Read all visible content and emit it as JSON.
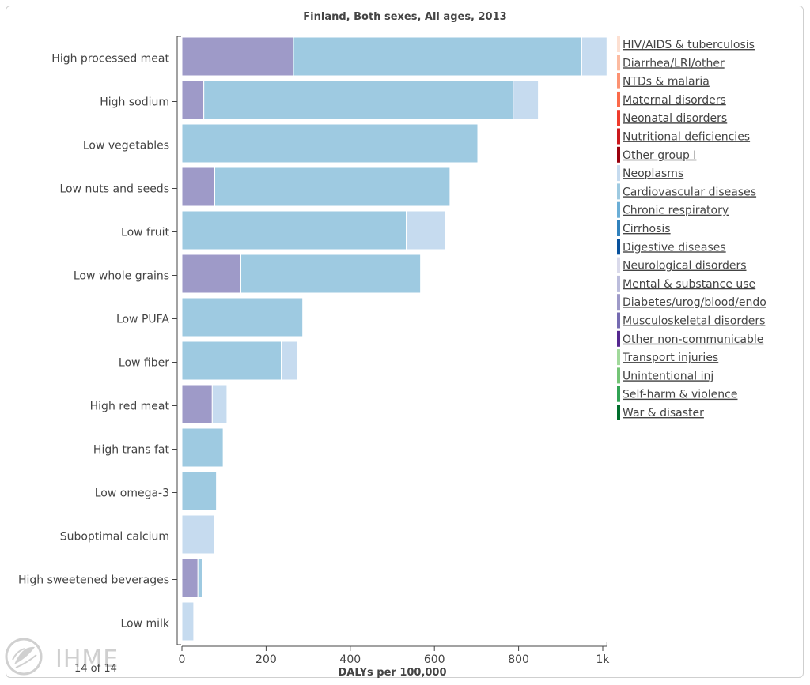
{
  "chart_data": {
    "type": "bar",
    "orientation": "horizontal",
    "stacked": true,
    "title": "Finland, Both sexes, All ages, 2013",
    "xlabel": "DALYs per 100,000",
    "xlim": [
      0,
      1010
    ],
    "x_ticks": [
      "0",
      "200",
      "400",
      "600",
      "800",
      "1k"
    ],
    "x_tick_values": [
      0,
      200,
      400,
      600,
      800,
      1000
    ],
    "categories": [
      "High processed meat",
      "High sodium",
      "Low vegetables",
      "Low nuts and seeds",
      "Low fruit",
      "Low whole grains",
      "Low PUFA",
      "Low fiber",
      "High red meat",
      "High trans fat",
      "Low omega-3",
      "Suboptimal calcium",
      "High sweetened beverages",
      "Low milk"
    ],
    "series": [
      {
        "name": "Diabetes/urog/blood/endo",
        "color": "#9e9ac8",
        "values": [
          265,
          52,
          0,
          78,
          0,
          140,
          0,
          0,
          72,
          0,
          0,
          0,
          38,
          0
        ]
      },
      {
        "name": "Cardiovascular diseases",
        "color": "#9ecae1",
        "values": [
          685,
          735,
          703,
          559,
          533,
          427,
          287,
          236,
          0,
          98,
          82,
          0,
          10,
          0
        ]
      },
      {
        "name": "Neoplasms",
        "color": "#c6dbef",
        "values": [
          60,
          60,
          0,
          0,
          92,
          0,
          0,
          38,
          35,
          0,
          0,
          78,
          0,
          28
        ]
      }
    ],
    "legend_position": "right",
    "legend": [
      {
        "label": "HIV/AIDS & tuberculosis",
        "color": "#fde0d2"
      },
      {
        "label": "Diarrhea/LRI/other",
        "color": "#fcbba1"
      },
      {
        "label": "NTDs & malaria",
        "color": "#fc9272"
      },
      {
        "label": "Maternal disorders",
        "color": "#fb6a4a"
      },
      {
        "label": "Neonatal disorders",
        "color": "#ef3b2c"
      },
      {
        "label": "Nutritional deficiencies",
        "color": "#cb181d"
      },
      {
        "label": "Other group I",
        "color": "#99000d"
      },
      {
        "label": "Neoplasms",
        "color": "#c6dbef"
      },
      {
        "label": "Cardiovascular diseases",
        "color": "#9ecae1"
      },
      {
        "label": "Chronic respiratory",
        "color": "#6baed6"
      },
      {
        "label": "Cirrhosis",
        "color": "#3182bd"
      },
      {
        "label": "Digestive diseases",
        "color": "#08519c"
      },
      {
        "label": "Neurological disorders",
        "color": "#dadaeb"
      },
      {
        "label": "Mental & substance use",
        "color": "#bcbddc"
      },
      {
        "label": "Diabetes/urog/blood/endo",
        "color": "#9e9ac8"
      },
      {
        "label": "Musculoskeletal disorders",
        "color": "#756bb1"
      },
      {
        "label": "Other non-communicable",
        "color": "#54278f"
      },
      {
        "label": "Transport injuries",
        "color": "#a1d99b"
      },
      {
        "label": "Unintentional inj",
        "color": "#74c476"
      },
      {
        "label": "Self-harm & violence",
        "color": "#31a354"
      },
      {
        "label": "War & disaster",
        "color": "#006d2c"
      }
    ]
  },
  "footer": {
    "logo_text": "IHME",
    "page_count": "14 of 14"
  }
}
